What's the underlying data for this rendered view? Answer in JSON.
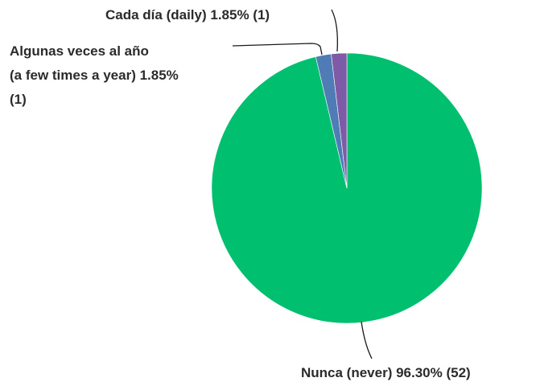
{
  "chart_data": {
    "type": "pie",
    "title": "",
    "slices": [
      {
        "label": "Nunca (never)",
        "percent_text": "96.30%",
        "count_text": "(52)",
        "value": 52,
        "color": "#00bf6f"
      },
      {
        "label": "Algunas veces al año (a few times a year)",
        "percent_text": "1.85%",
        "count_text": "(1)",
        "value": 1,
        "color": "#507cb6"
      },
      {
        "label": "Cada día (daily)",
        "percent_text": "1.85%",
        "count_text": "(1)",
        "value": 1,
        "color": "#7d5ba6"
      }
    ],
    "labels": {
      "nunca": "Nunca (never) 96.30% (52)",
      "algunas_line1": "Algunas veces al año",
      "algunas_line2": "(a few times a year) 1.85%",
      "algunas_line3": "(1)",
      "cada": "Cada día (daily) 1.85% (1)"
    },
    "legend": "none"
  }
}
